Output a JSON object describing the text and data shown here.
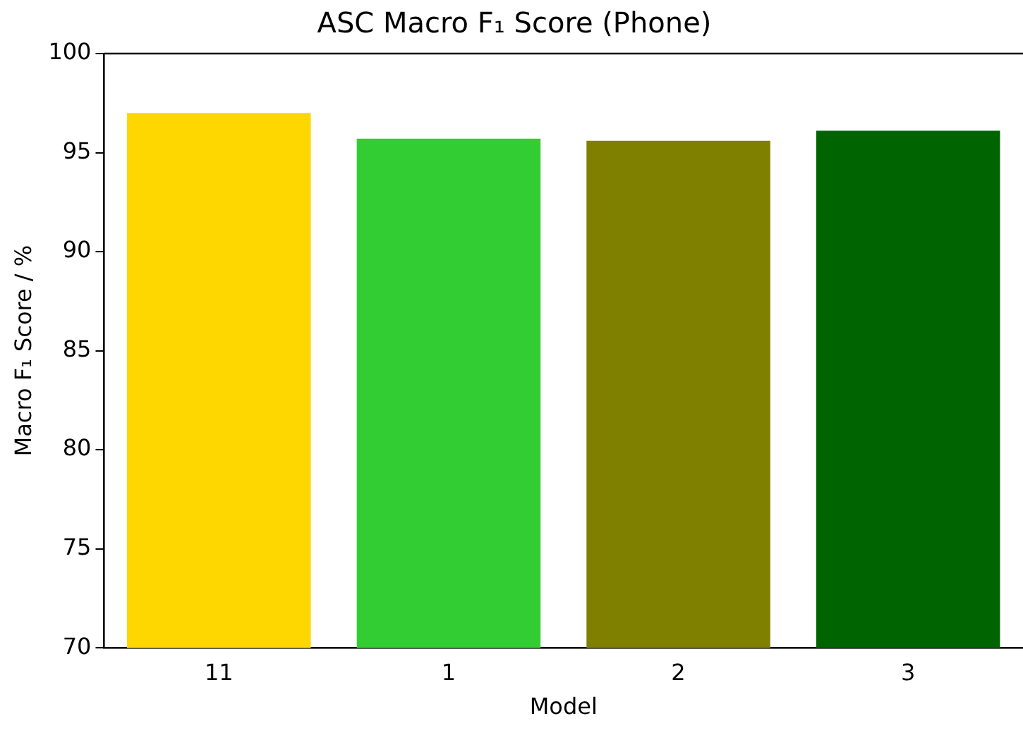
{
  "chart_data": {
    "type": "bar",
    "title": "ASC Macro F₁ Score (Phone)",
    "xlabel": "Model",
    "ylabel": "Macro F₁ Score / %",
    "categories": [
      "11",
      "1",
      "2",
      "3"
    ],
    "values": [
      97.0,
      95.7,
      95.6,
      96.1
    ],
    "colors": [
      "#ffd700",
      "#32cd32",
      "#808000",
      "#006400"
    ],
    "ylim": [
      70,
      100
    ],
    "yticks": [
      70,
      75,
      80,
      85,
      90,
      95,
      100
    ],
    "grid": false,
    "legend": false
  }
}
